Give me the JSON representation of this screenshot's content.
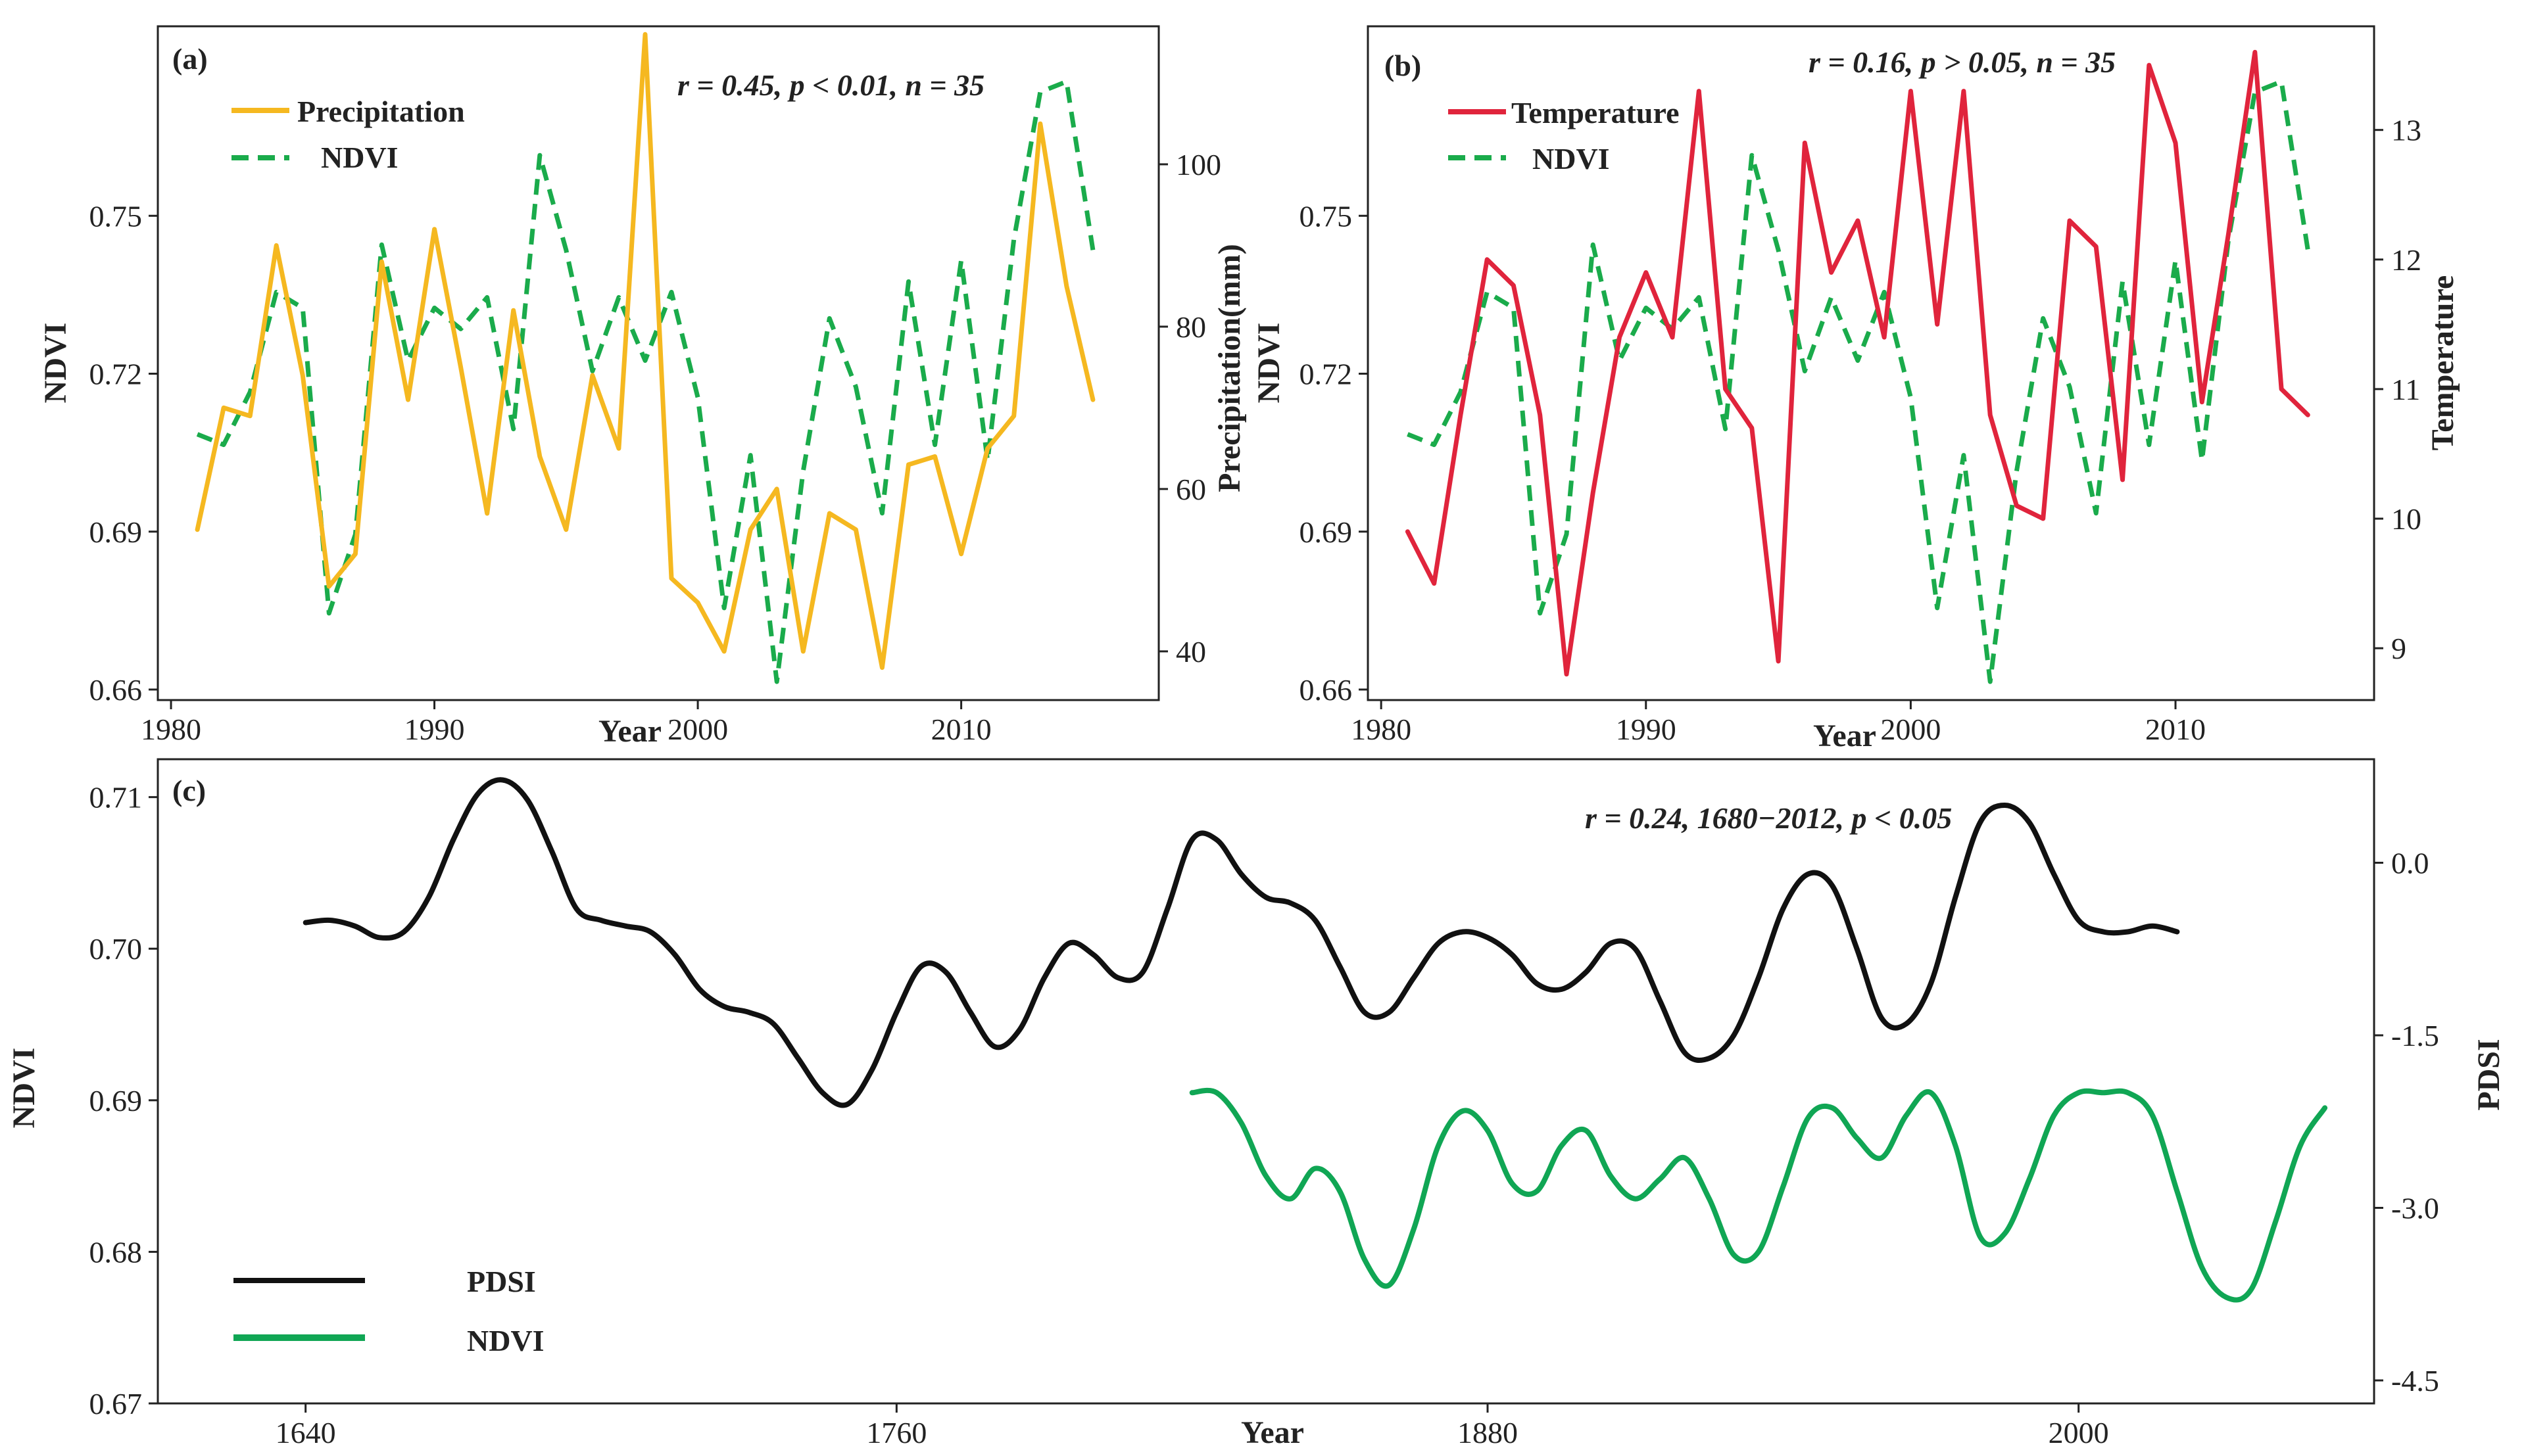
{
  "figure": {
    "colors": {
      "precip": "#F5B820",
      "ndvi": "#1AAB4B",
      "temp": "#E0243C",
      "pdsi": "#111111",
      "ndvi_c": "#10A654"
    }
  },
  "chart_data": [
    {
      "type": "line",
      "panel_label": "(a)",
      "annotation": "r = 0.45, p < 0.01,  n = 35",
      "xlabel": "Year",
      "ylabel": "NDVI",
      "y2label": "Precipitation(mm)",
      "xlim": [
        1979.5,
        2017.5
      ],
      "ylim": [
        0.658,
        0.786
      ],
      "y2lim": [
        34,
        117
      ],
      "xticks": [
        "1980",
        "1990",
        "2000",
        "2010"
      ],
      "yticks": [
        "0.66",
        "0.69",
        "0.72",
        "0.75"
      ],
      "y2ticks": [
        "40",
        "60",
        "80",
        "100"
      ],
      "legend": [
        "Precipitation",
        "NDVI"
      ],
      "x": [
        1981,
        1982,
        1983,
        1984,
        1985,
        1986,
        1987,
        1988,
        1989,
        1990,
        1991,
        1992,
        1993,
        1994,
        1995,
        1996,
        1997,
        1998,
        1999,
        2000,
        2001,
        2002,
        2003,
        2004,
        2005,
        2006,
        2007,
        2008,
        2009,
        2010,
        2011,
        2012,
        2013,
        2014,
        2015
      ],
      "series": [
        {
          "name": "NDVI",
          "axis": "left",
          "style": "dashed",
          "values": [
            0.7085,
            0.7065,
            0.7165,
            0.7355,
            0.7325,
            0.6745,
            0.6895,
            0.7445,
            0.7225,
            0.7325,
            0.7285,
            0.7345,
            0.7095,
            0.7615,
            0.7435,
            0.7205,
            0.7345,
            0.7225,
            0.7355,
            0.7155,
            0.6755,
            0.7045,
            0.6615,
            0.7015,
            0.7305,
            0.7175,
            0.6935,
            0.7375,
            0.7065,
            0.7415,
            0.7035,
            0.7455,
            0.7735,
            0.7755,
            0.7435
          ]
        },
        {
          "name": "Precipitation",
          "axis": "right",
          "style": "solid",
          "values": [
            55,
            70,
            69,
            90,
            74,
            48,
            52,
            88,
            71,
            92,
            75,
            57,
            82,
            64,
            55,
            74,
            65,
            116,
            49,
            46,
            40,
            55,
            60,
            40,
            57,
            55,
            38,
            63,
            64,
            52,
            65,
            69,
            105,
            85,
            71
          ]
        }
      ]
    },
    {
      "type": "line",
      "panel_label": "(b)",
      "annotation": "r = 0.16, p > 0.05,  n = 35",
      "xlabel": "Year",
      "ylabel": "NDVI",
      "y2label": "Temperature",
      "xlim": [
        1979.5,
        2017.5
      ],
      "ylim": [
        0.658,
        0.786
      ],
      "y2lim": [
        8.6,
        13.8
      ],
      "xticks": [
        "1980",
        "1990",
        "2000",
        "2010"
      ],
      "yticks": [
        "0.66",
        "0.69",
        "0.72",
        "0.75"
      ],
      "y2ticks": [
        "9",
        "10",
        "11",
        "12",
        "13"
      ],
      "legend": [
        "Temperature",
        "NDVI"
      ],
      "x": [
        1981,
        1982,
        1983,
        1984,
        1985,
        1986,
        1987,
        1988,
        1989,
        1990,
        1991,
        1992,
        1993,
        1994,
        1995,
        1996,
        1997,
        1998,
        1999,
        2000,
        2001,
        2002,
        2003,
        2004,
        2005,
        2006,
        2007,
        2008,
        2009,
        2010,
        2011,
        2012,
        2013,
        2014,
        2015
      ],
      "series": [
        {
          "name": "NDVI",
          "axis": "left",
          "style": "dashed",
          "values": [
            0.7085,
            0.7065,
            0.7165,
            0.7355,
            0.7325,
            0.6745,
            0.6895,
            0.7445,
            0.7225,
            0.7325,
            0.7285,
            0.7345,
            0.7095,
            0.7615,
            0.7435,
            0.7205,
            0.7345,
            0.7225,
            0.7355,
            0.7155,
            0.6755,
            0.7045,
            0.6615,
            0.7015,
            0.7305,
            0.7175,
            0.6935,
            0.7375,
            0.7065,
            0.7415,
            0.7035,
            0.7455,
            0.7735,
            0.7755,
            0.7435
          ]
        },
        {
          "name": "Temperature",
          "axis": "right",
          "style": "solid",
          "values": [
            9.9,
            9.5,
            10.8,
            12.0,
            11.8,
            10.8,
            8.8,
            10.2,
            11.4,
            11.9,
            11.4,
            13.3,
            11.0,
            10.7,
            8.9,
            12.9,
            11.9,
            12.3,
            11.4,
            13.3,
            11.5,
            13.3,
            10.8,
            10.1,
            10.0,
            12.3,
            12.1,
            10.3,
            13.5,
            12.9,
            10.9,
            12.2,
            13.6,
            11.0,
            10.8
          ]
        }
      ]
    },
    {
      "type": "line",
      "panel_label": "(c)",
      "annotation": "r = 0.24, 1680−2012, p < 0.05",
      "xlabel": "Year",
      "ylabel": "NDVI",
      "y2label": "PDSI",
      "xlim": [
        1610,
        2060
      ],
      "ylim": [
        0.67,
        0.7125
      ],
      "y2lim": [
        -4.7,
        0.9
      ],
      "xticks": [
        "1640",
        "1760",
        "1880",
        "2000"
      ],
      "yticks": [
        "0.67",
        "0.68",
        "0.69",
        "0.70",
        "0.71"
      ],
      "y2ticks": [
        "-4.5",
        "-3.0",
        "-1.5",
        "0.0"
      ],
      "legend": [
        "PDSI",
        "NDVI"
      ],
      "series": [
        {
          "name": "PDSI",
          "axis": "right",
          "style": "solid",
          "x": [
            1640,
            1645,
            1650,
            1655,
            1660,
            1665,
            1670,
            1675,
            1680,
            1685,
            1690,
            1695,
            1700,
            1705,
            1710,
            1715,
            1720,
            1725,
            1730,
            1735,
            1740,
            1745,
            1750,
            1755,
            1760,
            1765,
            1770,
            1775,
            1780,
            1785,
            1790,
            1795,
            1800,
            1805,
            1810,
            1815,
            1820,
            1825,
            1830,
            1835,
            1840,
            1845,
            1850,
            1855,
            1860,
            1865,
            1870,
            1875,
            1880,
            1885,
            1890,
            1895,
            1900,
            1905,
            1910,
            1915,
            1920,
            1925,
            1930,
            1935,
            1940,
            1945,
            1950,
            1955,
            1960,
            1965,
            1970,
            1975,
            1980,
            1985,
            1990,
            1995,
            2000,
            2005,
            2010,
            2015,
            2020
          ],
          "values": [
            -0.52,
            -0.5,
            -0.55,
            -0.65,
            -0.6,
            -0.3,
            0.2,
            0.6,
            0.72,
            0.55,
            0.1,
            -0.4,
            -0.5,
            -0.55,
            -0.6,
            -0.8,
            -1.1,
            -1.25,
            -1.3,
            -1.4,
            -1.7,
            -2.0,
            -2.1,
            -1.8,
            -1.3,
            -0.9,
            -0.95,
            -1.3,
            -1.6,
            -1.45,
            -1.0,
            -0.7,
            -0.8,
            -1.0,
            -0.95,
            -0.4,
            0.2,
            0.2,
            -0.1,
            -0.3,
            -0.35,
            -0.5,
            -0.9,
            -1.3,
            -1.3,
            -1.0,
            -0.7,
            -0.6,
            -0.65,
            -0.8,
            -1.05,
            -1.1,
            -0.95,
            -0.7,
            -0.75,
            -1.2,
            -1.65,
            -1.7,
            -1.5,
            -1.0,
            -0.4,
            -0.1,
            -0.2,
            -0.75,
            -1.35,
            -1.4,
            -1.05,
            -0.3,
            0.35,
            0.5,
            0.35,
            -0.1,
            -0.5,
            -0.6,
            -0.6,
            -0.55,
            -0.6
          ]
        },
        {
          "name": "NDVI",
          "axis": "left",
          "style": "solid",
          "x": [
            1820,
            1825,
            1830,
            1835,
            1840,
            1845,
            1850,
            1855,
            1860,
            1865,
            1870,
            1875,
            1880,
            1885,
            1890,
            1895,
            1900,
            1905,
            1910,
            1915,
            1920,
            1925,
            1930,
            1935,
            1940,
            1945,
            1950,
            1955,
            1960,
            1965,
            1970,
            1975,
            1980,
            1985,
            1990,
            1995,
            2000,
            2005,
            2010,
            2015,
            2020,
            2025,
            2030,
            2035,
            2040,
            2045,
            2050
          ],
          "values": [
            0.6905,
            0.6905,
            0.6885,
            0.685,
            0.6835,
            0.6855,
            0.684,
            0.6795,
            0.6778,
            0.6815,
            0.687,
            0.6893,
            0.688,
            0.6845,
            0.684,
            0.687,
            0.688,
            0.685,
            0.6835,
            0.6848,
            0.6862,
            0.6835,
            0.6798,
            0.68,
            0.6843,
            0.6888,
            0.6895,
            0.6875,
            0.6862,
            0.689,
            0.6905,
            0.687,
            0.681,
            0.6812,
            0.6848,
            0.689,
            0.6905,
            0.6905,
            0.6905,
            0.689,
            0.684,
            0.679,
            0.677,
            0.6775,
            0.682,
            0.687,
            0.6895
          ]
        }
      ]
    }
  ]
}
